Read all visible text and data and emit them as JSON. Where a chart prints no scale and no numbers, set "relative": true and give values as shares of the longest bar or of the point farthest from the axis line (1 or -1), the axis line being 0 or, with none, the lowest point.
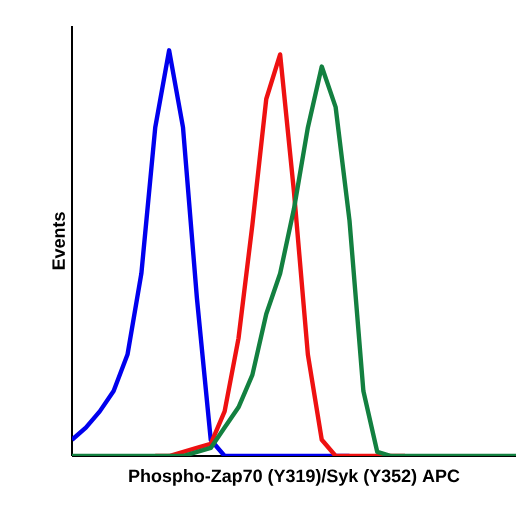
{
  "chart_data": {
    "type": "line",
    "relative": true,
    "xlabel": "Phospho-Zap70 (Y319)/Syk (Y352) APC",
    "ylabel": "Events",
    "categories": [
      null,
      null,
      null,
      null,
      null,
      null,
      null,
      null,
      null,
      null,
      null,
      null,
      null,
      null,
      null,
      null,
      null,
      null,
      null,
      null,
      null,
      null,
      null,
      null,
      null,
      null,
      null,
      null,
      null,
      null,
      null,
      null,
      null
    ],
    "series": [
      {
        "color": "#0000ee",
        "values": [
          0.04,
          0.07,
          0.11,
          0.16,
          0.25,
          0.45,
          0.81,
          1,
          0.81,
          0.39,
          0.04,
          0,
          0,
          0,
          0,
          0,
          0,
          0,
          0,
          0,
          0,
          null,
          null,
          null,
          null,
          null,
          null,
          null,
          null,
          null,
          null,
          null,
          null
        ]
      },
      {
        "color": "#ee1111",
        "values": [
          null,
          null,
          null,
          null,
          null,
          null,
          0,
          0,
          0.01,
          0.02,
          0.03,
          0.11,
          0.29,
          0.57,
          0.88,
          0.99,
          0.65,
          0.25,
          0.04,
          0,
          0,
          0,
          0,
          0,
          0,
          null,
          null,
          null,
          null,
          null,
          null,
          null,
          null
        ]
      },
      {
        "color": "#138040",
        "values": [
          0,
          0,
          0,
          0,
          0,
          0,
          0,
          0,
          0,
          0.01,
          0.02,
          0.07,
          0.12,
          0.2,
          0.35,
          0.45,
          0.61,
          0.81,
          0.96,
          0.86,
          0.58,
          0.16,
          0.01,
          0,
          0,
          0,
          0,
          0,
          0,
          0,
          0,
          0,
          0
        ]
      }
    ]
  }
}
